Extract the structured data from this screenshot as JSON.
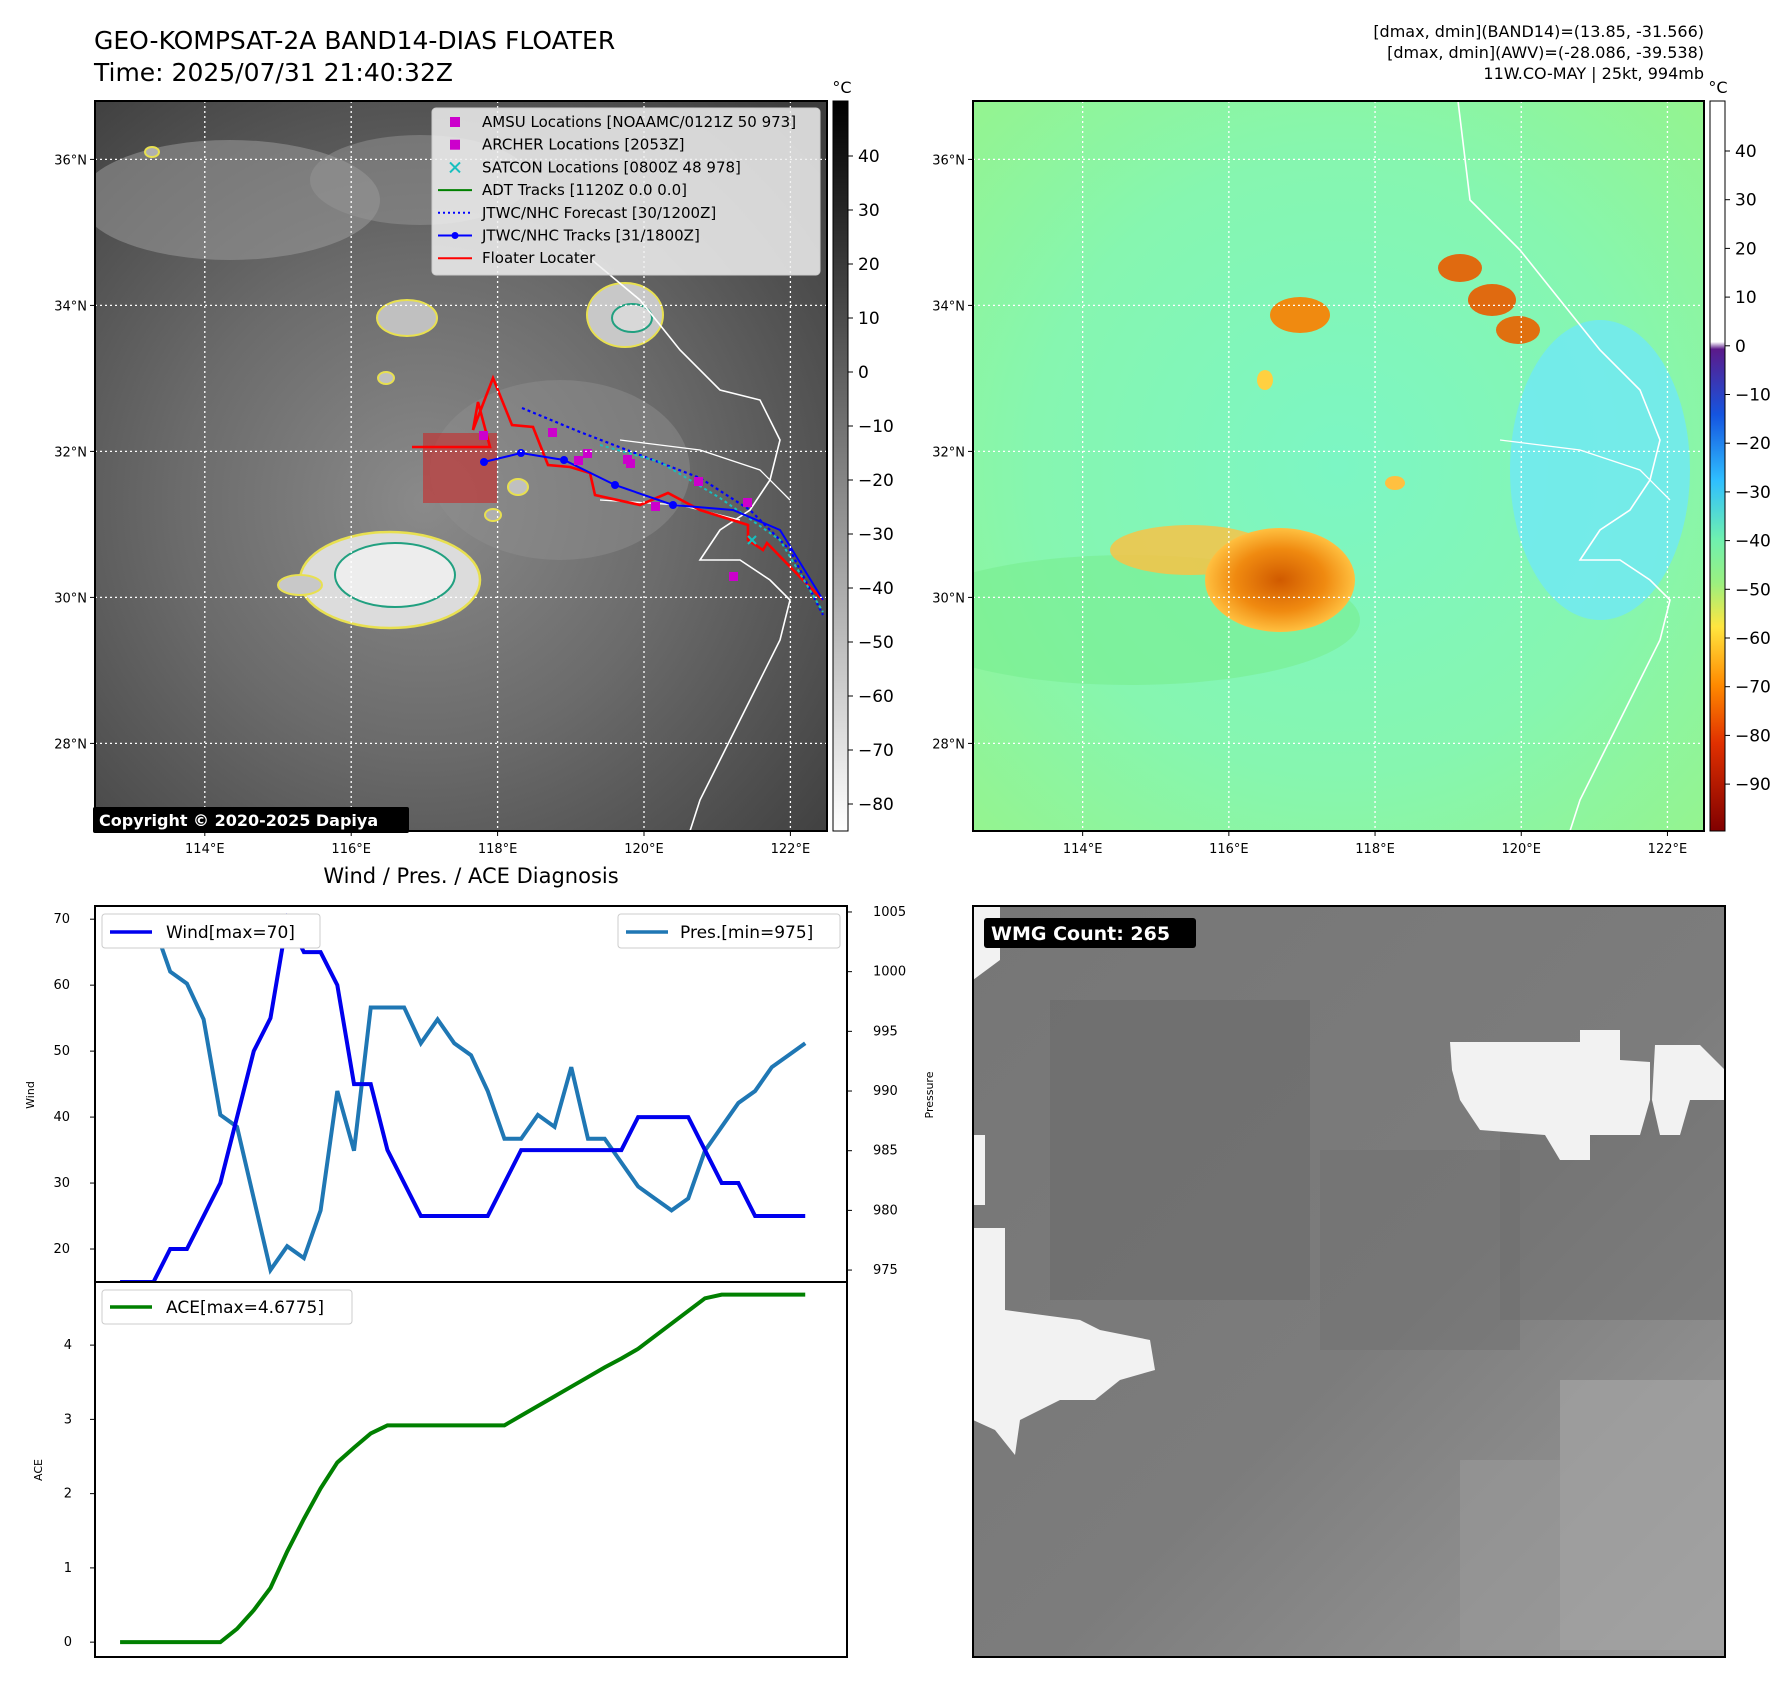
{
  "header": {
    "title": "GEO-KOMPSAT-2A BAND14-DIAS FLOATER",
    "time": "Time: 2025/07/31 21:40:32Z",
    "dmax_band14": "[dmax, dmin](BAND14)=(13.85, -31.566)",
    "dmax_awv": "[dmax, dmin](AWV)=(-28.086, -39.538)",
    "storm_info": "11W.CO-MAY | 25kt, 994mb"
  },
  "map": {
    "lon_ticks": [
      "114°E",
      "116°E",
      "118°E",
      "120°E",
      "122°E"
    ],
    "lat_ticks": [
      "36°N",
      "34°N",
      "32°N",
      "30°N",
      "28°N"
    ],
    "lon_range": [
      112.5,
      122.5
    ],
    "lat_range": [
      26.8,
      36.8
    ],
    "copyright": "Copyright © 2020-2025 Dapiya",
    "legend": [
      {
        "label": "AMSU Locations [NOAAMC/0121Z 50 973]",
        "color": "#cc00cc",
        "marker": "square"
      },
      {
        "label": "ARCHER Locations [2053Z]",
        "color": "#cc00cc",
        "marker": "square"
      },
      {
        "label": "SATCON Locations [0800Z 48 978]",
        "color": "#17bfbf",
        "marker": "x"
      },
      {
        "label": "ADT Tracks [1120Z 0.0 0.0]",
        "color": "#008000",
        "marker": "line"
      },
      {
        "label": "JTWC/NHC Forecast [30/1200Z]",
        "color": "#0000ff",
        "marker": "dotted"
      },
      {
        "label": "JTWC/NHC Tracks [31/1800Z]",
        "color": "#0000ff",
        "marker": "line-dot"
      },
      {
        "label": "Floater Locater",
        "color": "#ff0000",
        "marker": "line"
      }
    ],
    "colorbar_unit": "°C",
    "left_colorbar_ticks": [
      "40",
      "30",
      "20",
      "10",
      "0",
      "−10",
      "−20",
      "−30",
      "−40",
      "−50",
      "−60",
      "−70",
      "−80"
    ],
    "right_colorbar_ticks": [
      "40",
      "30",
      "20",
      "10",
      "0",
      "−10",
      "−20",
      "−30",
      "−40",
      "−50",
      "−60",
      "−70",
      "−80",
      "−90"
    ]
  },
  "diagnosis": {
    "title": "Wind / Pres. / ACE Diagnosis",
    "wind_legend": "Wind[max=70]",
    "pres_legend": "Pres.[min=975]",
    "ace_legend": "ACE[max=4.6775]",
    "wind_axis_label": "Wind",
    "pres_axis_label": "Pressure",
    "ace_axis_label": "ACE",
    "wind_ticks": [
      "70",
      "60",
      "50",
      "40",
      "30",
      "20"
    ],
    "pres_ticks": [
      "1005",
      "1000",
      "995",
      "990",
      "985",
      "980",
      "975"
    ],
    "ace_ticks": [
      "4",
      "3",
      "2",
      "1",
      "0"
    ]
  },
  "wmg": {
    "label": "WMG Count: 265"
  },
  "chart_data": [
    {
      "type": "line",
      "title": "Wind / Pres. / ACE Diagnosis",
      "x": [
        0,
        1,
        2,
        3,
        4,
        5,
        6,
        7,
        8,
        9,
        10,
        11,
        12,
        13,
        14,
        15,
        16,
        17,
        18,
        19,
        20,
        21,
        22,
        23,
        24,
        25,
        26,
        27,
        28,
        29,
        30,
        31,
        32,
        33,
        34,
        35,
        36,
        37,
        38,
        39,
        40,
        41
      ],
      "series": [
        {
          "name": "Wind[max=70]",
          "color": "#0000ee",
          "axis": "left",
          "ylim": [
            15,
            72
          ],
          "values": [
            15,
            15,
            15,
            20,
            20,
            25,
            30,
            40,
            50,
            55,
            70,
            65,
            65,
            60,
            45,
            45,
            35,
            30,
            25,
            25,
            25,
            25,
            25,
            30,
            35,
            35,
            35,
            35,
            35,
            35,
            35,
            40,
            40,
            40,
            40,
            35,
            30,
            30,
            25,
            25,
            25,
            25
          ]
        },
        {
          "name": "Pres.[min=975]",
          "color": "#1f77b4",
          "axis": "right",
          "ylim": [
            974,
            1005.5
          ],
          "values": [
            1004,
            1004,
            1004,
            1000,
            999,
            996,
            988,
            987,
            981,
            975,
            977,
            976,
            980,
            990,
            985,
            997,
            997,
            997,
            994,
            996,
            994,
            993,
            990,
            986,
            986,
            988,
            987,
            992,
            986,
            986,
            984,
            982,
            981,
            980,
            981,
            985,
            987,
            989,
            990,
            992,
            993,
            994
          ]
        }
      ]
    },
    {
      "type": "area",
      "x": [
        0,
        1,
        2,
        3,
        4,
        5,
        6,
        7,
        8,
        9,
        10,
        11,
        12,
        13,
        14,
        15,
        16,
        17,
        18,
        19,
        20,
        21,
        22,
        23,
        24,
        25,
        26,
        27,
        28,
        29,
        30,
        31,
        32,
        33,
        34,
        35,
        36,
        37,
        38,
        39,
        40,
        41
      ],
      "series": [
        {
          "name": "ACE[max=4.6775]",
          "color": "#008000",
          "values": [
            0,
            0,
            0,
            0,
            0,
            0,
            0,
            0.18,
            0.43,
            0.73,
            1.22,
            1.66,
            2.07,
            2.42,
            2.62,
            2.81,
            2.92,
            2.92,
            2.92,
            2.92,
            2.92,
            2.92,
            2.92,
            2.92,
            3.05,
            3.18,
            3.31,
            3.44,
            3.57,
            3.7,
            3.82,
            3.95,
            4.12,
            4.29,
            4.46,
            4.63,
            4.68,
            4.68,
            4.68,
            4.68,
            4.68,
            4.68
          ]
        }
      ],
      "ylim": [
        -0.2,
        4.85
      ]
    }
  ]
}
